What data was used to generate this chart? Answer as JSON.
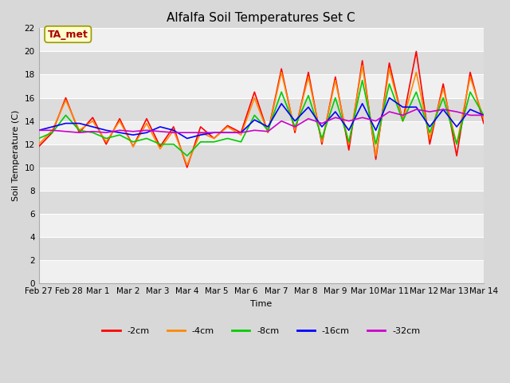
{
  "title": "Alfalfa Soil Temperatures Set C",
  "xlabel": "Time",
  "ylabel": "Soil Temperature (C)",
  "ylim": [
    0,
    22
  ],
  "yticks": [
    0,
    2,
    4,
    6,
    8,
    10,
    12,
    14,
    16,
    18,
    20,
    22
  ],
  "x_labels": [
    "Feb 27",
    "Feb 28",
    "Mar 1",
    "Mar 2",
    "Mar 3",
    "Mar 4",
    "Mar 5",
    "Mar 6",
    "Mar 7",
    "Mar 8",
    "Mar 9",
    "Mar 10",
    "Mar 11",
    "Mar 12",
    "Mar 13",
    "Mar 14"
  ],
  "series": {
    "-2cm": [
      11.8,
      13.0,
      16.0,
      13.0,
      14.3,
      12.0,
      14.2,
      11.8,
      14.2,
      11.8,
      13.5,
      10.0,
      13.5,
      12.5,
      13.6,
      13.0,
      16.5,
      13.0,
      18.5,
      13.0,
      18.2,
      12.0,
      17.8,
      11.5,
      19.2,
      10.7,
      19.0,
      14.0,
      20.0,
      12.0,
      17.2,
      11.0,
      18.2,
      13.8
    ],
    "-4cm": [
      12.0,
      13.2,
      15.8,
      13.2,
      14.0,
      12.2,
      14.0,
      11.8,
      13.8,
      11.6,
      13.2,
      10.2,
      13.0,
      12.5,
      13.5,
      12.8,
      16.0,
      13.0,
      18.2,
      13.2,
      17.8,
      12.2,
      17.5,
      12.0,
      18.8,
      11.0,
      18.5,
      14.0,
      18.2,
      12.5,
      16.8,
      12.0,
      17.8,
      14.2
    ],
    "-8cm": [
      12.5,
      13.0,
      14.5,
      13.2,
      13.0,
      12.5,
      12.8,
      12.2,
      12.5,
      12.0,
      12.0,
      11.0,
      12.2,
      12.2,
      12.5,
      12.2,
      14.5,
      13.2,
      16.5,
      13.5,
      16.2,
      12.5,
      16.0,
      12.2,
      17.5,
      12.0,
      17.2,
      14.0,
      16.5,
      13.0,
      16.0,
      12.0,
      16.5,
      14.5
    ],
    "-16cm": [
      13.2,
      13.5,
      13.8,
      13.8,
      13.5,
      13.2,
      13.0,
      12.8,
      13.0,
      13.5,
      13.2,
      12.5,
      12.8,
      13.0,
      13.0,
      13.0,
      14.1,
      13.5,
      15.5,
      14.0,
      15.2,
      13.5,
      14.8,
      13.2,
      15.5,
      13.2,
      16.0,
      15.2,
      15.2,
      13.5,
      15.0,
      13.5,
      15.0,
      14.5
    ],
    "-32cm": [
      13.2,
      13.2,
      13.1,
      13.0,
      13.1,
      13.0,
      13.2,
      13.1,
      13.2,
      13.1,
      13.0,
      13.0,
      13.0,
      13.0,
      13.0,
      13.0,
      13.2,
      13.1,
      14.0,
      13.5,
      14.2,
      13.8,
      14.3,
      14.0,
      14.3,
      14.0,
      14.8,
      14.5,
      15.0,
      14.8,
      15.0,
      14.8,
      14.5,
      14.5
    ]
  },
  "colors": {
    "-2cm": "#ff0000",
    "-4cm": "#ff8800",
    "-8cm": "#00cc00",
    "-16cm": "#0000ff",
    "-32cm": "#cc00cc"
  },
  "outer_bg": "#d8d8d8",
  "plot_bg_light": "#f0f0f0",
  "plot_bg_dark": "#dcdcdc",
  "grid_color": "#ffffff",
  "ta_met_label": "TA_met",
  "ta_met_bg": "#ffffcc",
  "ta_met_border": "#999900",
  "ta_met_text_color": "#aa0000",
  "title_fontsize": 11,
  "axis_label_fontsize": 8,
  "tick_fontsize": 7.5,
  "legend_fontsize": 8
}
